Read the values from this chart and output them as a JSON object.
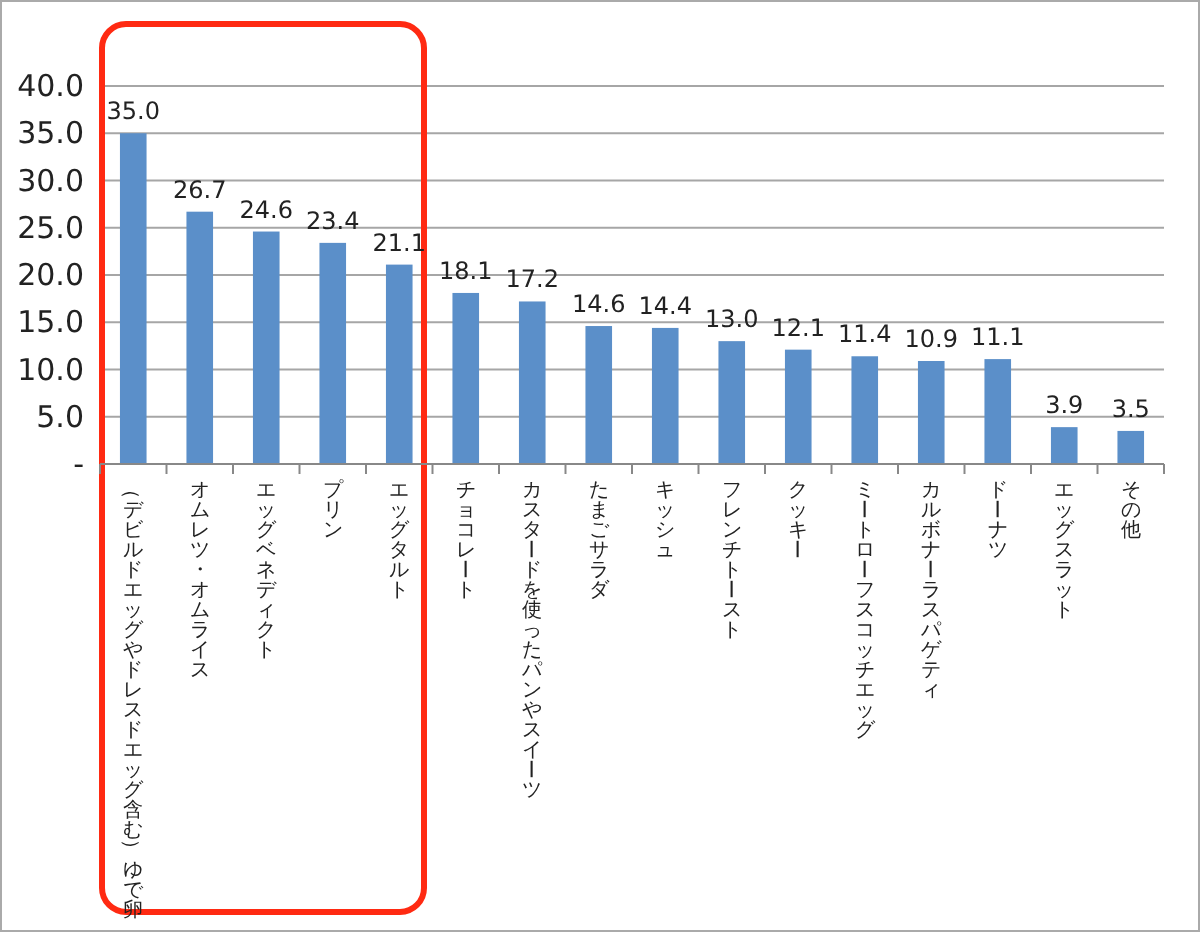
{
  "chart_data": {
    "type": "bar",
    "categories": [
      "（デビルドエッグやドレスドエッグ含む）ゆで卵",
      "オムレツ・オムライス",
      "エッグベネディクト",
      "プリン",
      "エッグタルト",
      "チョコレート",
      "カスタードを使ったパンやスイーツ",
      "たまごサラダ",
      "キッシュ",
      "フレンチトースト",
      "クッキー",
      "ミートローフスコッチエッグ",
      "カルボナーラスパゲティ",
      "ドーナツ",
      "エッグスラット",
      "その他"
    ],
    "values": [
      35.0,
      26.7,
      24.6,
      23.4,
      21.1,
      18.1,
      17.2,
      14.6,
      14.4,
      13.0,
      12.1,
      11.4,
      10.9,
      11.1,
      3.9,
      3.5
    ],
    "value_labels": [
      "35.0",
      "26.7",
      "24.6",
      "23.4",
      "21.1",
      "18.1",
      "17.2",
      "14.6",
      "14.4",
      "13.0",
      "12.1",
      "11.4",
      "10.9",
      "11.1",
      "3.9",
      "3.5"
    ],
    "color": "#5b8fc9",
    "ylim": [
      0,
      40
    ],
    "yticks": [
      {
        "value": 0,
        "label": "-"
      },
      {
        "value": 5,
        "label": "5.0"
      },
      {
        "value": 10,
        "label": "10.0"
      },
      {
        "value": 15,
        "label": "15.0"
      },
      {
        "value": 20,
        "label": "20.0"
      },
      {
        "value": 25,
        "label": "25.0"
      },
      {
        "value": 30,
        "label": "30.0"
      },
      {
        "value": 35,
        "label": "35.0"
      },
      {
        "value": 40,
        "label": "40.0"
      }
    ],
    "grid": "y"
  }
}
